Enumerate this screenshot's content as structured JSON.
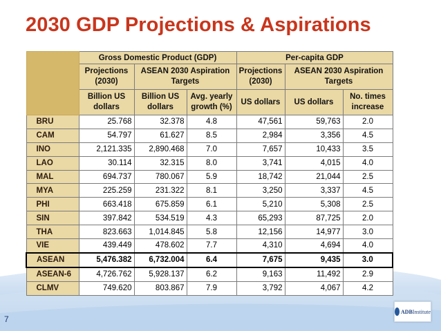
{
  "slide": {
    "title": "2030 GDP Projections & Aspirations",
    "page_number": "7",
    "logo_text": "ADBInstitute",
    "logo_text_bold": "ADB",
    "logo_text_rest": "Institute"
  },
  "colors": {
    "title": "#c9351c",
    "header_fill": "#ead8a5",
    "stub_fill": "#d6b86a",
    "highlight_border": "#000000"
  },
  "table": {
    "groups": {
      "gdp": "Gross Domestic Product (GDP)",
      "per_capita": "Per-capita GDP"
    },
    "subheaders": {
      "gdp_projections": "Projections (2030)",
      "gdp_targets": "ASEAN 2030 Aspiration Targets",
      "pc_projections": "Projections (2030)",
      "pc_targets": "ASEAN 2030 Aspiration Targets"
    },
    "units": [
      "Billion US dollars",
      "Billion US dollars",
      "Avg. yearly growth (%)",
      "US dollars",
      "US dollars",
      "No. times increase"
    ],
    "rows": [
      {
        "label": "BRU",
        "values": [
          "25.768",
          "32.378",
          "4.8",
          "47,561",
          "59,763",
          "2.0"
        ]
      },
      {
        "label": "CAM",
        "values": [
          "54.797",
          "61.627",
          "8.5",
          "2,984",
          "3,356",
          "4.5"
        ]
      },
      {
        "label": "INO",
        "values": [
          "2,121.335",
          "2,890.468",
          "7.0",
          "7,657",
          "10,433",
          "3.5"
        ]
      },
      {
        "label": "LAO",
        "values": [
          "30.114",
          "32.315",
          "8.0",
          "3,741",
          "4,015",
          "4.0"
        ]
      },
      {
        "label": "MAL",
        "values": [
          "694.737",
          "780.067",
          "5.9",
          "18,742",
          "21,044",
          "2.5"
        ]
      },
      {
        "label": "MYA",
        "values": [
          "225.259",
          "231.322",
          "8.1",
          "3,250",
          "3,337",
          "4.5"
        ]
      },
      {
        "label": "PHI",
        "values": [
          "663.418",
          "675.859",
          "6.1",
          "5,210",
          "5,308",
          "2.5"
        ]
      },
      {
        "label": "SIN",
        "values": [
          "397.842",
          "534.519",
          "4.3",
          "65,293",
          "87,725",
          "2.0"
        ]
      },
      {
        "label": "THA",
        "values": [
          "823.663",
          "1,014.845",
          "5.8",
          "12,156",
          "14,977",
          "3.0"
        ]
      },
      {
        "label": "VIE",
        "values": [
          "439.449",
          "478.602",
          "7.7",
          "4,310",
          "4,694",
          "4.0"
        ]
      },
      {
        "label": "ASEAN",
        "values": [
          "5,476.382",
          "6,732.004",
          "6.4",
          "7,675",
          "9,435",
          "3.0"
        ]
      },
      {
        "label": "ASEAN-6",
        "values": [
          "4,726.762",
          "5,928.137",
          "6.2",
          "9,163",
          "11,492",
          "2.9"
        ]
      },
      {
        "label": "CLMV",
        "values": [
          "749.620",
          "803.867",
          "7.9",
          "3,792",
          "4,067",
          "4.2"
        ]
      }
    ]
  }
}
